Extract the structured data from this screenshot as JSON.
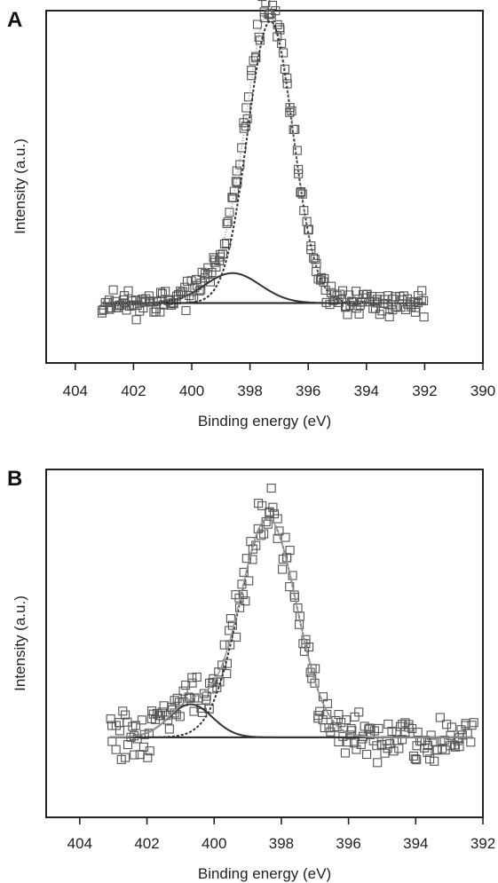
{
  "chart_data": [
    {
      "panel_label": "A",
      "type": "scatter",
      "xlabel": "Binding energy (eV)",
      "ylabel": "Intensity (a.u.)",
      "xlim": [
        405,
        390
      ],
      "x_reversed": true,
      "xticks": [
        404,
        402,
        400,
        398,
        396,
        394,
        392,
        390
      ],
      "yticks": [],
      "ylim": [
        0,
        1.0
      ],
      "baseline": 0.17,
      "noise": 0.022,
      "x_range": [
        403.1,
        392.0
      ],
      "peaks": [
        {
          "center": 397.3,
          "height": 0.8,
          "sigma": 0.78
        },
        {
          "center": 398.6,
          "height": 0.085,
          "sigma": 0.95
        }
      ],
      "series": [
        {
          "kind": "data-markers",
          "marker": "open-square",
          "color": "#555555"
        },
        {
          "kind": "background",
          "color": "#222222"
        },
        {
          "kind": "component",
          "peak": 0,
          "color": "#333333",
          "dash": "3,2"
        },
        {
          "kind": "component",
          "peak": 1,
          "color": "#333333"
        },
        {
          "kind": "envelope",
          "color": "#9a9a9a",
          "dash": "1,2"
        }
      ],
      "grid": false,
      "legend": "none"
    },
    {
      "panel_label": "B",
      "type": "scatter",
      "xlabel": "Binding energy (eV)",
      "ylabel": "Intensity (a.u.)",
      "xlim": [
        405,
        392
      ],
      "x_reversed": true,
      "xticks": [
        404,
        402,
        400,
        398,
        396,
        394,
        392
      ],
      "yticks": [],
      "ylim": [
        0,
        1.0
      ],
      "baseline": 0.23,
      "noise": 0.04,
      "x_range": [
        403.1,
        392.3
      ],
      "peaks": [
        {
          "center": 398.4,
          "height": 0.63,
          "sigma": 0.85
        },
        {
          "center": 400.7,
          "height": 0.095,
          "sigma": 0.65
        }
      ],
      "series": [
        {
          "kind": "data-markers",
          "marker": "open-square",
          "color": "#555555"
        },
        {
          "kind": "background",
          "color": "#222222"
        },
        {
          "kind": "component",
          "peak": 0,
          "color": "#333333",
          "dash": "3,2"
        },
        {
          "kind": "component",
          "peak": 1,
          "color": "#333333"
        },
        {
          "kind": "envelope",
          "color": "#9a9a9a",
          "dash": ""
        }
      ],
      "grid": false,
      "legend": "none"
    }
  ]
}
